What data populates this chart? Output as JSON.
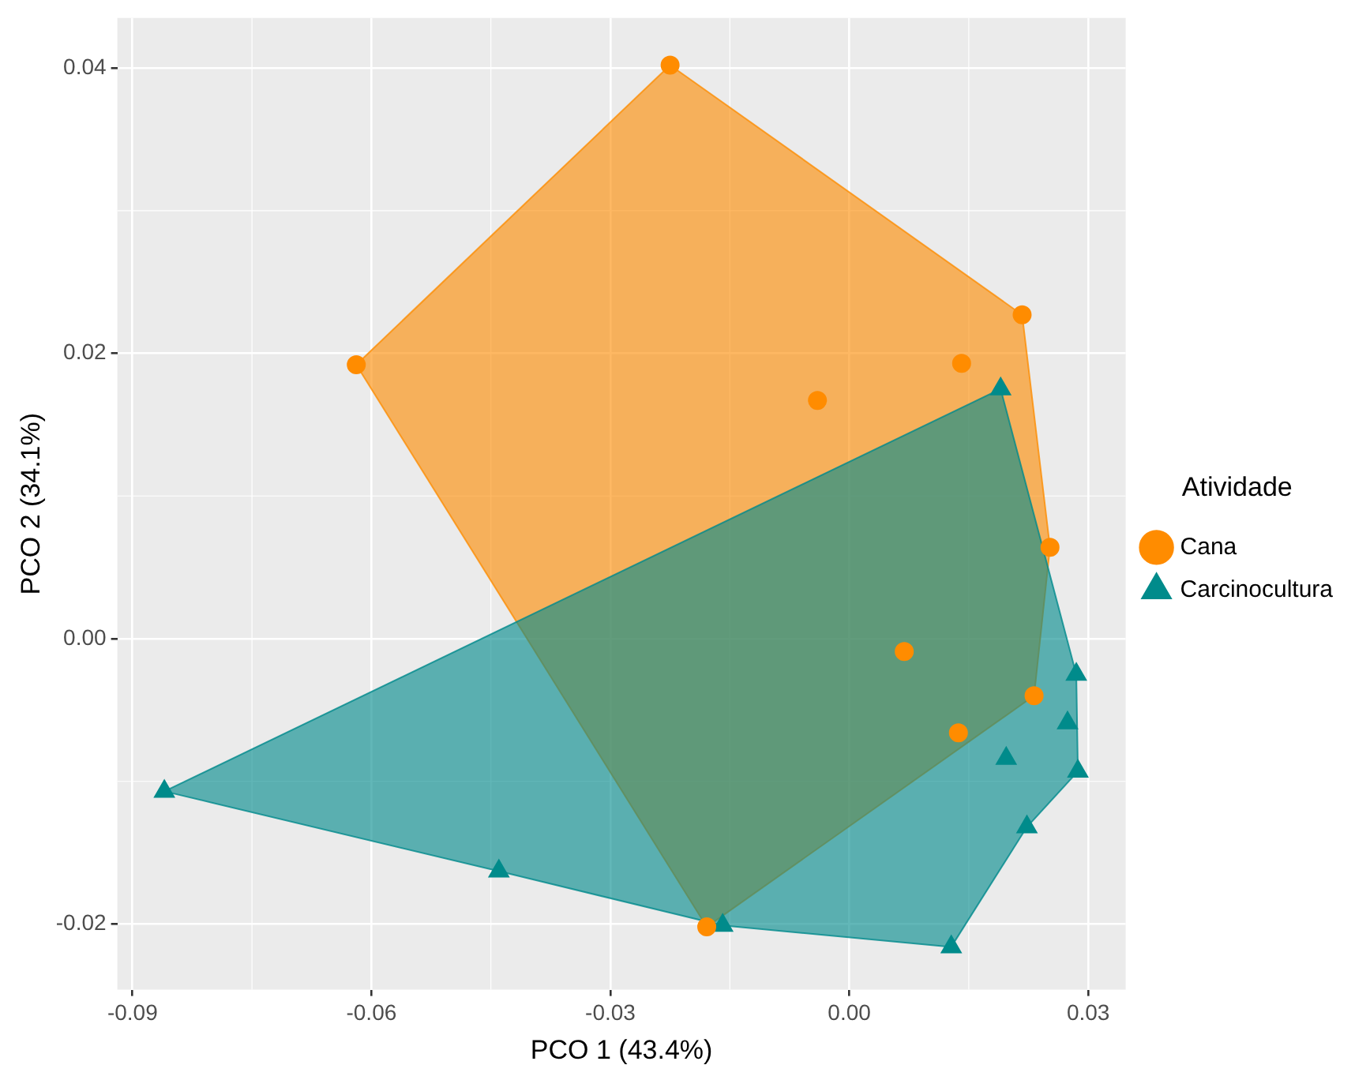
{
  "chart_data": {
    "type": "scatter",
    "xlabel": "PCO 1 (43.4%)",
    "ylabel": "PCO 2 (34.1%)",
    "legend_title": "Atividade",
    "legend": "right",
    "grid": true,
    "xlim": [
      -0.0919,
      0.0347
    ],
    "xticks": [
      -0.09,
      -0.06,
      -0.03,
      {
        "value": 0,
        "label": "0.00"
      },
      0.03
    ],
    "ylim": [
      -0.0246,
      0.0435
    ],
    "yticks": [
      {
        "value": -0.02,
        "label": "-0.02"
      },
      {
        "value": 0,
        "label": "0.00"
      },
      {
        "value": 0.02,
        "label": "0.02"
      },
      {
        "value": 0.04,
        "label": "0.04"
      }
    ],
    "series": [
      {
        "name": "Cana",
        "color": "#ff8c00",
        "marker": "circle",
        "x": [
          -0.0225,
          -0.0619,
          0.0217,
          0.0141,
          -0.004,
          0.0252,
          0.0069,
          0.0232,
          0.0137,
          -0.0179
        ],
        "values": [
          0.0402,
          0.0192,
          0.0227,
          0.0193,
          0.0167,
          0.0064,
          -0.0009,
          -0.004,
          -0.0066,
          -0.0202
        ]
      },
      {
        "name": "Carcinocultura",
        "color": "#008b8b",
        "marker": "triangle",
        "x": [
          -0.086,
          -0.044,
          -0.0159,
          0.0128,
          0.0223,
          0.0287,
          0.0197,
          0.0274,
          0.0285,
          0.019
        ],
        "values": [
          -0.0107,
          -0.0163,
          -0.0201,
          -0.0216,
          -0.0132,
          -0.0093,
          -0.0084,
          -0.0059,
          -0.0025,
          0.0175
        ]
      },
      {
        "type": "area",
        "color": "#f6b15c",
        "x": [
          -0.0225,
          0.0217,
          0.0252,
          0.0232,
          -0.0179,
          -0.0619,
          -0.0225
        ],
        "values": [
          0.0402,
          0.0227,
          0.0064,
          -0.004,
          -0.0202,
          0.0192,
          0.0402
        ]
      },
      {
        "type": "area",
        "color": "#5aafb0",
        "x": [
          0.019,
          0.0285,
          0.0287,
          0.0223,
          0.0128,
          -0.0159,
          -0.044,
          -0.086,
          0.019
        ],
        "values": [
          0.0175,
          -0.0025,
          -0.0093,
          -0.0132,
          -0.0216,
          -0.0201,
          -0.0163,
          -0.0107,
          0.0175
        ]
      }
    ]
  }
}
